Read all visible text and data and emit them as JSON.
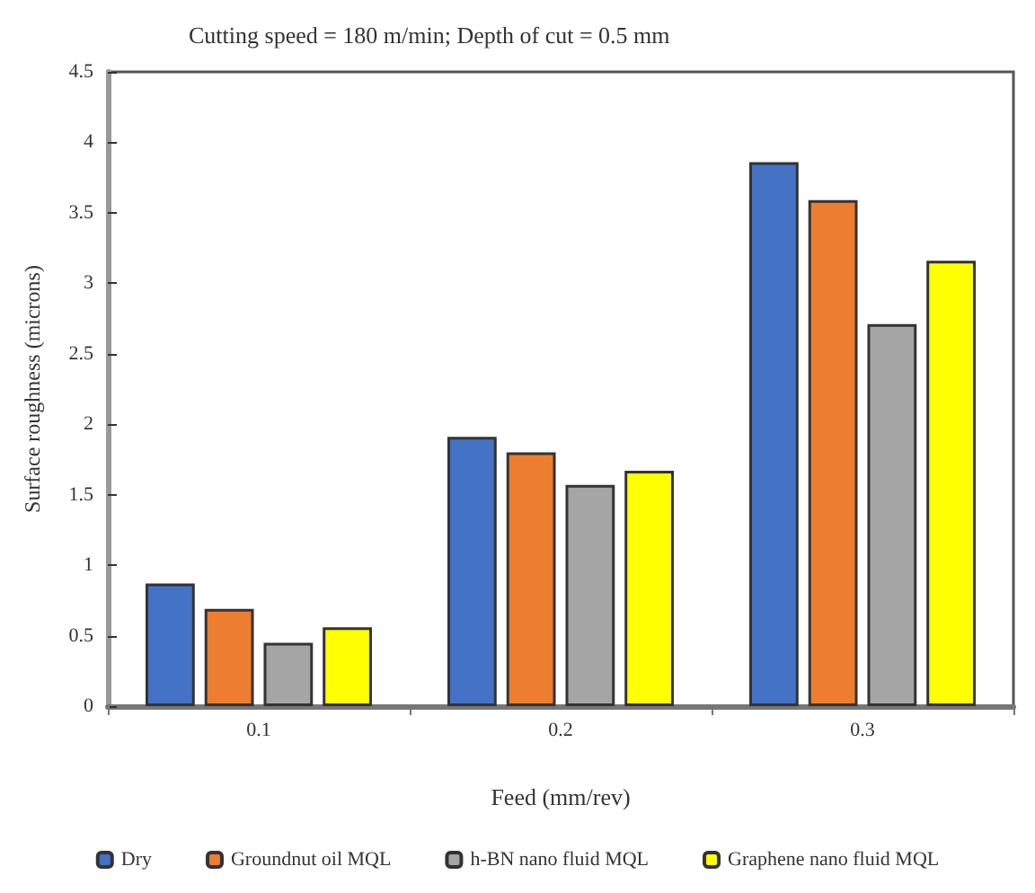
{
  "chart_data": {
    "type": "bar",
    "title": "Cutting speed = 180 m/min; Depth of cut = 0.5 mm",
    "xlabel": "Feed (mm/rev)",
    "ylabel": "Surface roughness (microns)",
    "categories": [
      "0.1",
      "0.2",
      "0.3"
    ],
    "series": [
      {
        "name": "Dry",
        "color": "#4472c4",
        "values": [
          0.87,
          1.91,
          3.86
        ]
      },
      {
        "name": "Groundnut oil MQL",
        "color": "#ed7d31",
        "values": [
          0.69,
          1.8,
          3.59
        ]
      },
      {
        "name": "h-BN nano fluid MQL",
        "color": "#a5a5a5",
        "values": [
          0.45,
          1.57,
          2.71
        ]
      },
      {
        "name": "Graphene nano fluid MQL",
        "color": "#ffff00",
        "values": [
          0.56,
          1.67,
          3.16
        ]
      }
    ],
    "ylim": [
      0,
      4.5
    ],
    "yticks": [
      0,
      0.5,
      1,
      1.5,
      2,
      2.5,
      3,
      3.5,
      4,
      4.5
    ],
    "grid": false,
    "legend": "bottom"
  }
}
